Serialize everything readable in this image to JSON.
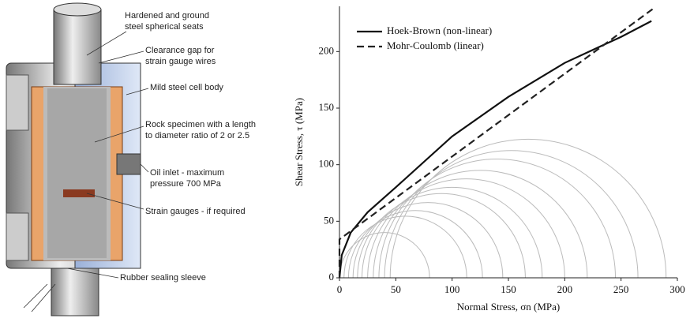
{
  "diagram": {
    "labels": [
      [
        "Hardened and ground",
        "steel spherical seats"
      ],
      [
        "Clearance gap for",
        "strain gauge wires"
      ],
      [
        "Mild steel cell body"
      ],
      [
        "Rock specimen with a length",
        "to diameter ratio of 2 or 2.5"
      ],
      [
        "Oil inlet - maximum",
        "pressure 700 MPa"
      ],
      [
        "Strain gauges - if required"
      ],
      [
        "Rubber sealing sleeve"
      ]
    ]
  },
  "chart_data": {
    "type": "line",
    "xlabel": "Normal Stress, σn (MPa)",
    "ylabel": "Shear Stress, τ (MPa)",
    "xlim": [
      0,
      300
    ],
    "xticks": [
      0,
      50,
      100,
      150,
      200,
      250,
      300
    ],
    "ylim": [
      0,
      240
    ],
    "yticks": [
      0,
      50,
      100,
      150,
      200
    ],
    "legend": "upper left",
    "series": [
      {
        "name": "Hoek-Brown (non-linear)",
        "color": "#111111",
        "dash": false,
        "x": [
          0,
          2,
          10,
          25,
          50,
          100,
          150,
          200,
          250,
          277
        ],
        "values": [
          0,
          20,
          40,
          58,
          80,
          125,
          160,
          190,
          213,
          227
        ]
      },
      {
        "name": "Mohr-Coulomb (linear)",
        "color": "#222222",
        "dash": true,
        "x": [
          0,
          0,
          280
        ],
        "values": [
          0,
          34,
          239
        ]
      }
    ],
    "circles": {
      "color": "#bbbbbb",
      "sigma3": [
        0,
        4,
        8,
        12,
        16,
        20,
        25,
        30,
        35,
        40,
        45
      ],
      "sigma1": [
        80,
        113,
        127,
        145,
        165,
        180,
        200,
        220,
        245,
        265,
        290
      ]
    }
  }
}
